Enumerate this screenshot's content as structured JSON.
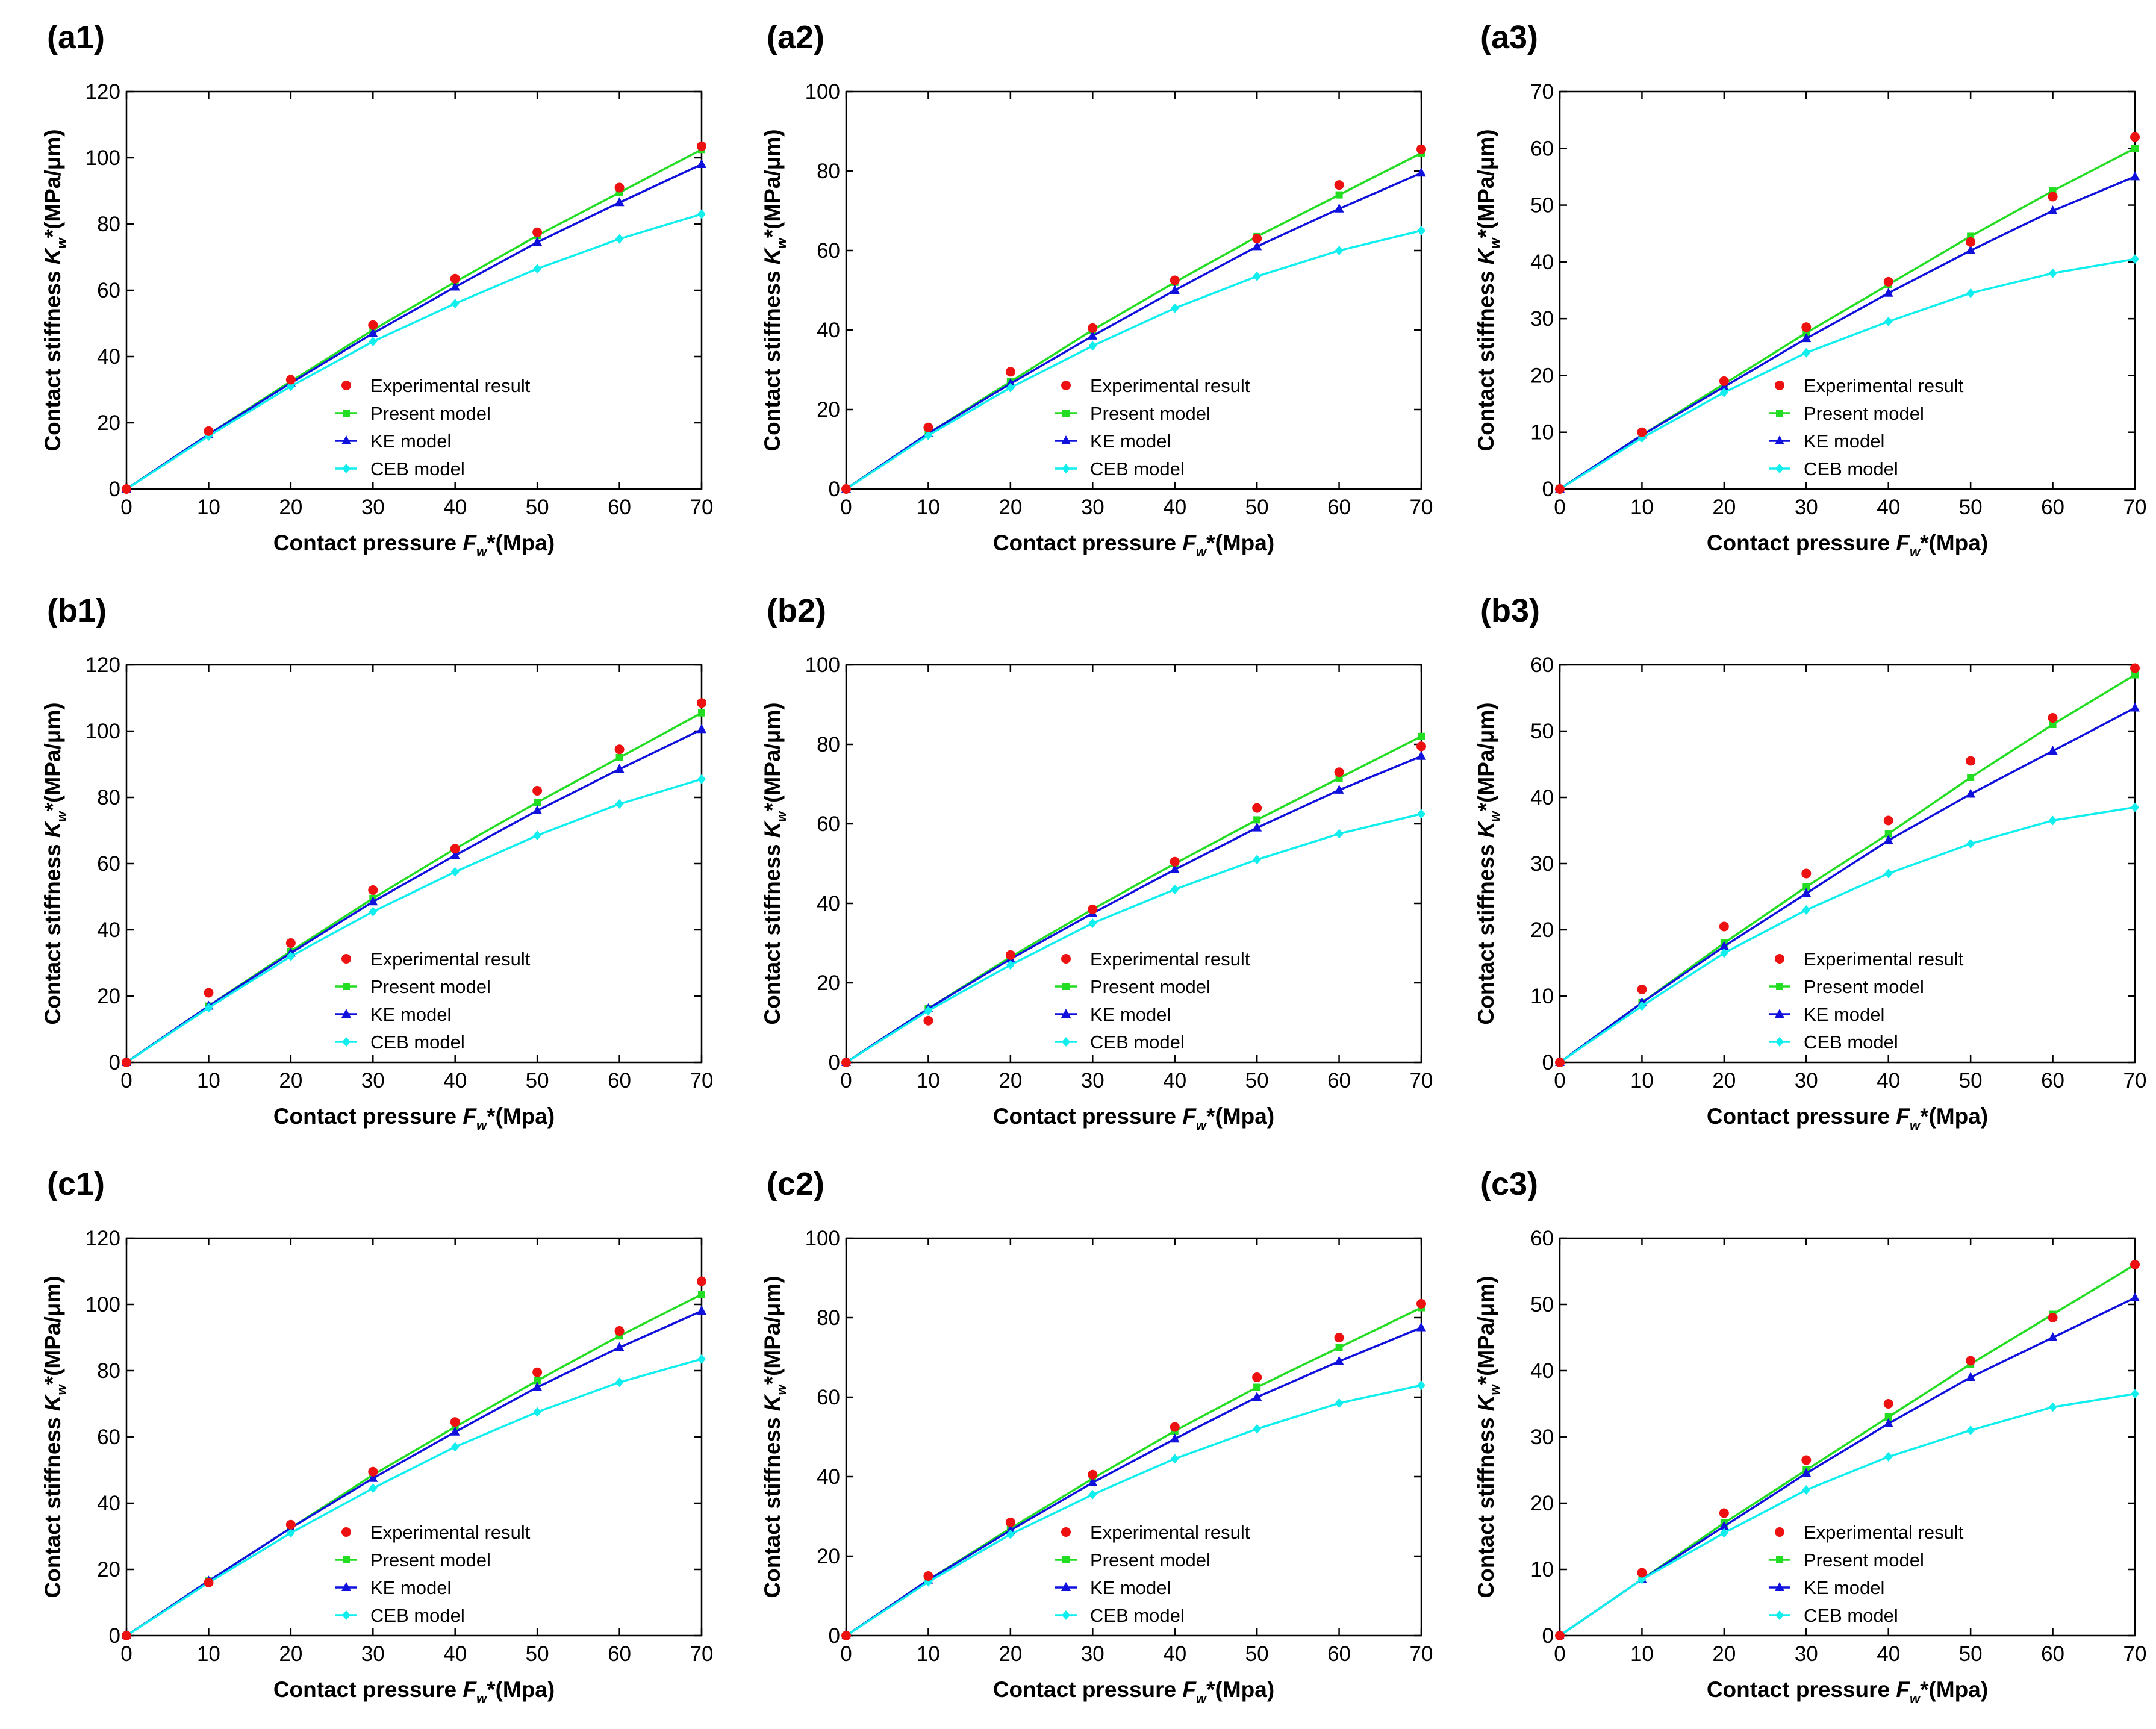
{
  "style": {
    "colors": {
      "experimental": "#ee1111",
      "present": "#22dd22",
      "ke": "#1111dd",
      "ceb": "#11eeee",
      "axis": "#000000"
    },
    "markers": {
      "experimental": "dot",
      "present": "square",
      "ke": "triangle",
      "ceb": "diamond"
    }
  },
  "chart_data": [
    {
      "id": "a1",
      "type": "line",
      "label": "(a1)",
      "xlabel": {
        "pre": "Contact pressure ",
        "sym": "F",
        "sub": "w",
        "post": "*(Mpa)"
      },
      "ylabel": {
        "pre": "Contact stiffness ",
        "sym": "K",
        "sub": "w",
        "post": "*(MPa/μm)"
      },
      "xlim": [
        0,
        70
      ],
      "ylim": [
        0,
        120
      ],
      "xticks": [
        "0",
        "10",
        "20",
        "30",
        "40",
        "50",
        "60",
        "70"
      ],
      "yticks": [
        "0",
        "20",
        "40",
        "60",
        "80",
        "100",
        "120"
      ],
      "x": [
        0,
        10,
        20,
        30,
        40,
        50,
        60,
        70
      ],
      "legend": [
        "Experimental result",
        "Present model",
        "KE model",
        "CEB model"
      ],
      "series": [
        {
          "name": "Experimental result",
          "key": "experimental",
          "values": [
            0,
            17.5,
            33,
            49.5,
            63.5,
            77.5,
            91,
            103.5
          ]
        },
        {
          "name": "Present model",
          "key": "present",
          "values": [
            0,
            16.5,
            32.5,
            48,
            62.5,
            76.5,
            89.5,
            102.5
          ]
        },
        {
          "name": "KE model",
          "key": "ke",
          "values": [
            0,
            16.5,
            32,
            47,
            61,
            74.5,
            86.5,
            98
          ]
        },
        {
          "name": "CEB model",
          "key": "ceb",
          "values": [
            0,
            16,
            31,
            44.5,
            56,
            66.5,
            75.5,
            83
          ]
        }
      ]
    },
    {
      "id": "a2",
      "type": "line",
      "label": "(a2)",
      "xlabel": {
        "pre": "Contact pressure ",
        "sym": "F",
        "sub": "w",
        "post": "*(Mpa)"
      },
      "ylabel": {
        "pre": "Contact stiffness ",
        "sym": "K",
        "sub": "w",
        "post": "*(MPa/μm)"
      },
      "xlim": [
        0,
        70
      ],
      "ylim": [
        0,
        100
      ],
      "xticks": [
        "0",
        "10",
        "20",
        "30",
        "40",
        "50",
        "60",
        "70"
      ],
      "yticks": [
        "0",
        "20",
        "40",
        "60",
        "80",
        "100"
      ],
      "x": [
        0,
        10,
        20,
        30,
        40,
        50,
        60,
        70
      ],
      "legend": [
        "Experimental result",
        "Present model",
        "KE model",
        "CEB model"
      ],
      "series": [
        {
          "name": "Experimental result",
          "key": "experimental",
          "values": [
            0,
            15.5,
            29.5,
            40.5,
            52.5,
            63,
            76.5,
            85.5
          ]
        },
        {
          "name": "Present model",
          "key": "present",
          "values": [
            0,
            14,
            27,
            40,
            52,
            63.5,
            74,
            84.5
          ]
        },
        {
          "name": "KE model",
          "key": "ke",
          "values": [
            0,
            14,
            26.5,
            38.5,
            50,
            61,
            70.5,
            79.5
          ]
        },
        {
          "name": "CEB model",
          "key": "ceb",
          "values": [
            0,
            13.5,
            25.5,
            36,
            45.5,
            53.5,
            60,
            65
          ]
        }
      ]
    },
    {
      "id": "a3",
      "type": "line",
      "label": "(a3)",
      "xlabel": {
        "pre": "Contact pressure ",
        "sym": "F",
        "sub": "w",
        "post": "*(Mpa)"
      },
      "ylabel": {
        "pre": "Contact stiffness ",
        "sym": "K",
        "sub": "w",
        "post": "*(MPa/μm)"
      },
      "xlim": [
        0,
        70
      ],
      "ylim": [
        0,
        70
      ],
      "xticks": [
        "0",
        "10",
        "20",
        "30",
        "40",
        "50",
        "60",
        "70"
      ],
      "yticks": [
        "0",
        "10",
        "20",
        "30",
        "40",
        "50",
        "60",
        "70"
      ],
      "x": [
        0,
        10,
        20,
        30,
        40,
        50,
        60,
        70
      ],
      "legend": [
        "Experimental result",
        "Present model",
        "KE model",
        "CEB model"
      ],
      "series": [
        {
          "name": "Experimental result",
          "key": "experimental",
          "values": [
            0,
            10,
            19,
            28.5,
            36.5,
            43.5,
            51.5,
            62
          ]
        },
        {
          "name": "Present model",
          "key": "present",
          "values": [
            0,
            9.5,
            18.5,
            27.5,
            36,
            44.5,
            52.5,
            60
          ]
        },
        {
          "name": "KE model",
          "key": "ke",
          "values": [
            0,
            9.5,
            18,
            26.5,
            34.5,
            42,
            49,
            55
          ]
        },
        {
          "name": "CEB model",
          "key": "ceb",
          "values": [
            0,
            9,
            17,
            24,
            29.5,
            34.5,
            38,
            40.5
          ]
        }
      ]
    },
    {
      "id": "b1",
      "type": "line",
      "label": "(b1)",
      "xlabel": {
        "pre": "Contact pressure ",
        "sym": "F",
        "sub": "w",
        "post": "*(Mpa)"
      },
      "ylabel": {
        "pre": "Contact stiffness ",
        "sym": "K",
        "sub": "w",
        "post": "*(MPa/μm)"
      },
      "xlim": [
        0,
        70
      ],
      "ylim": [
        0,
        120
      ],
      "xticks": [
        "0",
        "10",
        "20",
        "30",
        "40",
        "50",
        "60",
        "70"
      ],
      "yticks": [
        "0",
        "20",
        "40",
        "60",
        "80",
        "100",
        "120"
      ],
      "x": [
        0,
        10,
        20,
        30,
        40,
        50,
        60,
        70
      ],
      "legend": [
        "Experimental result",
        "Present model",
        "KE model",
        "CEB model"
      ],
      "series": [
        {
          "name": "Experimental result",
          "key": "experimental",
          "values": [
            0,
            21,
            36,
            52,
            64.5,
            82,
            94.5,
            108.5
          ]
        },
        {
          "name": "Present model",
          "key": "present",
          "values": [
            0,
            17,
            33.5,
            49.5,
            64.5,
            78.5,
            92,
            105.5
          ]
        },
        {
          "name": "KE model",
          "key": "ke",
          "values": [
            0,
            17,
            33,
            48.5,
            62.5,
            76,
            88.5,
            100.5
          ]
        },
        {
          "name": "CEB model",
          "key": "ceb",
          "values": [
            0,
            16.5,
            32,
            45.5,
            57.5,
            68.5,
            78,
            85.5
          ]
        }
      ]
    },
    {
      "id": "b2",
      "type": "line",
      "label": "(b2)",
      "xlabel": {
        "pre": "Contact pressure ",
        "sym": "F",
        "sub": "w",
        "post": "*(Mpa)"
      },
      "ylabel": {
        "pre": "Contact stiffness ",
        "sym": "K",
        "sub": "w",
        "post": "*(MPa/μm)"
      },
      "xlim": [
        0,
        70
      ],
      "ylim": [
        0,
        100
      ],
      "xticks": [
        "0",
        "10",
        "20",
        "30",
        "40",
        "50",
        "60",
        "70"
      ],
      "yticks": [
        "0",
        "20",
        "40",
        "60",
        "80",
        "100"
      ],
      "x": [
        0,
        10,
        20,
        30,
        40,
        50,
        60,
        70
      ],
      "legend": [
        "Experimental result",
        "Present model",
        "KE model",
        "CEB model"
      ],
      "series": [
        {
          "name": "Experimental result",
          "key": "experimental",
          "values": [
            0,
            10.5,
            27,
            38.5,
            50.5,
            64,
            73,
            79.5
          ]
        },
        {
          "name": "Present model",
          "key": "present",
          "values": [
            0,
            13.5,
            26.5,
            38.5,
            50,
            61,
            71.5,
            82
          ]
        },
        {
          "name": "KE model",
          "key": "ke",
          "values": [
            0,
            13.5,
            26,
            37.5,
            48.5,
            59,
            68.5,
            77
          ]
        },
        {
          "name": "CEB model",
          "key": "ceb",
          "values": [
            0,
            13,
            24.5,
            35,
            43.5,
            51,
            57.5,
            62.5
          ]
        }
      ]
    },
    {
      "id": "b3",
      "type": "line",
      "label": "(b3)",
      "xlabel": {
        "pre": "Contact pressure ",
        "sym": "F",
        "sub": "w",
        "post": "*(Mpa)"
      },
      "ylabel": {
        "pre": "Contact stiffness ",
        "sym": "K",
        "sub": "w",
        "post": "*(MPa/μm)"
      },
      "xlim": [
        0,
        70
      ],
      "ylim": [
        0,
        60
      ],
      "xticks": [
        "0",
        "10",
        "20",
        "30",
        "40",
        "50",
        "60",
        "70"
      ],
      "yticks": [
        "0",
        "10",
        "20",
        "30",
        "40",
        "50",
        "60"
      ],
      "x": [
        0,
        10,
        20,
        30,
        40,
        50,
        60,
        70
      ],
      "legend": [
        "Experimental result",
        "Present model",
        "KE model",
        "CEB model"
      ],
      "series": [
        {
          "name": "Experimental result",
          "key": "experimental",
          "values": [
            0,
            11,
            20.5,
            28.5,
            36.5,
            45.5,
            52,
            59.5
          ]
        },
        {
          "name": "Present model",
          "key": "present",
          "values": [
            0,
            9,
            18,
            26.5,
            34.5,
            43,
            51,
            58.5
          ]
        },
        {
          "name": "KE model",
          "key": "ke",
          "values": [
            0,
            9,
            17.5,
            25.5,
            33.5,
            40.5,
            47,
            53.5
          ]
        },
        {
          "name": "CEB model",
          "key": "ceb",
          "values": [
            0,
            8.5,
            16.5,
            23,
            28.5,
            33,
            36.5,
            38.5
          ]
        }
      ]
    },
    {
      "id": "c1",
      "type": "line",
      "label": "(c1)",
      "xlabel": {
        "pre": "Contact pressure ",
        "sym": "F",
        "sub": "w",
        "post": "*(Mpa)"
      },
      "ylabel": {
        "pre": "Contact stiffness ",
        "sym": "K",
        "sub": "w",
        "post": "*(MPa/μm)"
      },
      "xlim": [
        0,
        70
      ],
      "ylim": [
        0,
        120
      ],
      "xticks": [
        "0",
        "10",
        "20",
        "30",
        "40",
        "50",
        "60",
        "70"
      ],
      "yticks": [
        "0",
        "20",
        "40",
        "60",
        "80",
        "100",
        "120"
      ],
      "x": [
        0,
        10,
        20,
        30,
        40,
        50,
        60,
        70
      ],
      "legend": [
        "Experimental result",
        "Present model",
        "KE model",
        "CEB model"
      ],
      "series": [
        {
          "name": "Experimental result",
          "key": "experimental",
          "values": [
            0,
            16,
            33.5,
            49.5,
            64.5,
            79.5,
            92,
            107
          ]
        },
        {
          "name": "Present model",
          "key": "present",
          "values": [
            0,
            16.5,
            32.5,
            48.5,
            63,
            77,
            90.5,
            103
          ]
        },
        {
          "name": "KE model",
          "key": "ke",
          "values": [
            0,
            16.5,
            32.5,
            47.5,
            61.5,
            75,
            87,
            98
          ]
        },
        {
          "name": "CEB model",
          "key": "ceb",
          "values": [
            0,
            16,
            31,
            44.5,
            57,
            67.5,
            76.5,
            83.5
          ]
        }
      ]
    },
    {
      "id": "c2",
      "type": "line",
      "label": "(c2)",
      "xlabel": {
        "pre": "Contact pressure ",
        "sym": "F",
        "sub": "w",
        "post": "*(Mpa)"
      },
      "ylabel": {
        "pre": "Contact stiffness ",
        "sym": "K",
        "sub": "w",
        "post": "*(MPa/μm)"
      },
      "xlim": [
        0,
        70
      ],
      "ylim": [
        0,
        100
      ],
      "xticks": [
        "0",
        "10",
        "20",
        "30",
        "40",
        "50",
        "60",
        "70"
      ],
      "yticks": [
        "0",
        "20",
        "40",
        "60",
        "80",
        "100"
      ],
      "x": [
        0,
        10,
        20,
        30,
        40,
        50,
        60,
        70
      ],
      "legend": [
        "Experimental result",
        "Present model",
        "KE model",
        "CEB model"
      ],
      "series": [
        {
          "name": "Experimental result",
          "key": "experimental",
          "values": [
            0,
            15,
            28.5,
            40.5,
            52.5,
            65,
            75,
            83.5
          ]
        },
        {
          "name": "Present model",
          "key": "present",
          "values": [
            0,
            14,
            27,
            39.5,
            51.5,
            62.5,
            72.5,
            82.5
          ]
        },
        {
          "name": "KE model",
          "key": "ke",
          "values": [
            0,
            14,
            26.5,
            38.5,
            49.5,
            60,
            69,
            77.5
          ]
        },
        {
          "name": "CEB model",
          "key": "ceb",
          "values": [
            0,
            13.5,
            25.5,
            35.5,
            44.5,
            52,
            58.5,
            63
          ]
        }
      ]
    },
    {
      "id": "c3",
      "type": "line",
      "label": "(c3)",
      "xlabel": {
        "pre": "Contact pressure ",
        "sym": "F",
        "sub": "w",
        "post": "*(Mpa)"
      },
      "ylabel": {
        "pre": "Contact stiffness ",
        "sym": "K",
        "sub": "w",
        "post": "*(MPa/μm)"
      },
      "xlim": [
        0,
        70
      ],
      "ylim": [
        0,
        60
      ],
      "xticks": [
        "0",
        "10",
        "20",
        "30",
        "40",
        "50",
        "60",
        "70"
      ],
      "yticks": [
        "0",
        "10",
        "20",
        "30",
        "40",
        "50",
        "60"
      ],
      "x": [
        0,
        10,
        20,
        30,
        40,
        50,
        60,
        70
      ],
      "legend": [
        "Experimental result",
        "Present model",
        "KE model",
        "CEB model"
      ],
      "series": [
        {
          "name": "Experimental result",
          "key": "experimental",
          "values": [
            0,
            9.5,
            18.5,
            26.5,
            35,
            41.5,
            48,
            56
          ]
        },
        {
          "name": "Present model",
          "key": "present",
          "values": [
            0,
            8.5,
            17,
            25,
            33,
            41,
            48.5,
            56
          ]
        },
        {
          "name": "KE model",
          "key": "ke",
          "values": [
            0,
            8.5,
            16.5,
            24.5,
            32,
            39,
            45,
            51
          ]
        },
        {
          "name": "CEB model",
          "key": "ceb",
          "values": [
            0,
            8.5,
            15.5,
            22,
            27,
            31,
            34.5,
            36.5
          ]
        }
      ]
    }
  ]
}
